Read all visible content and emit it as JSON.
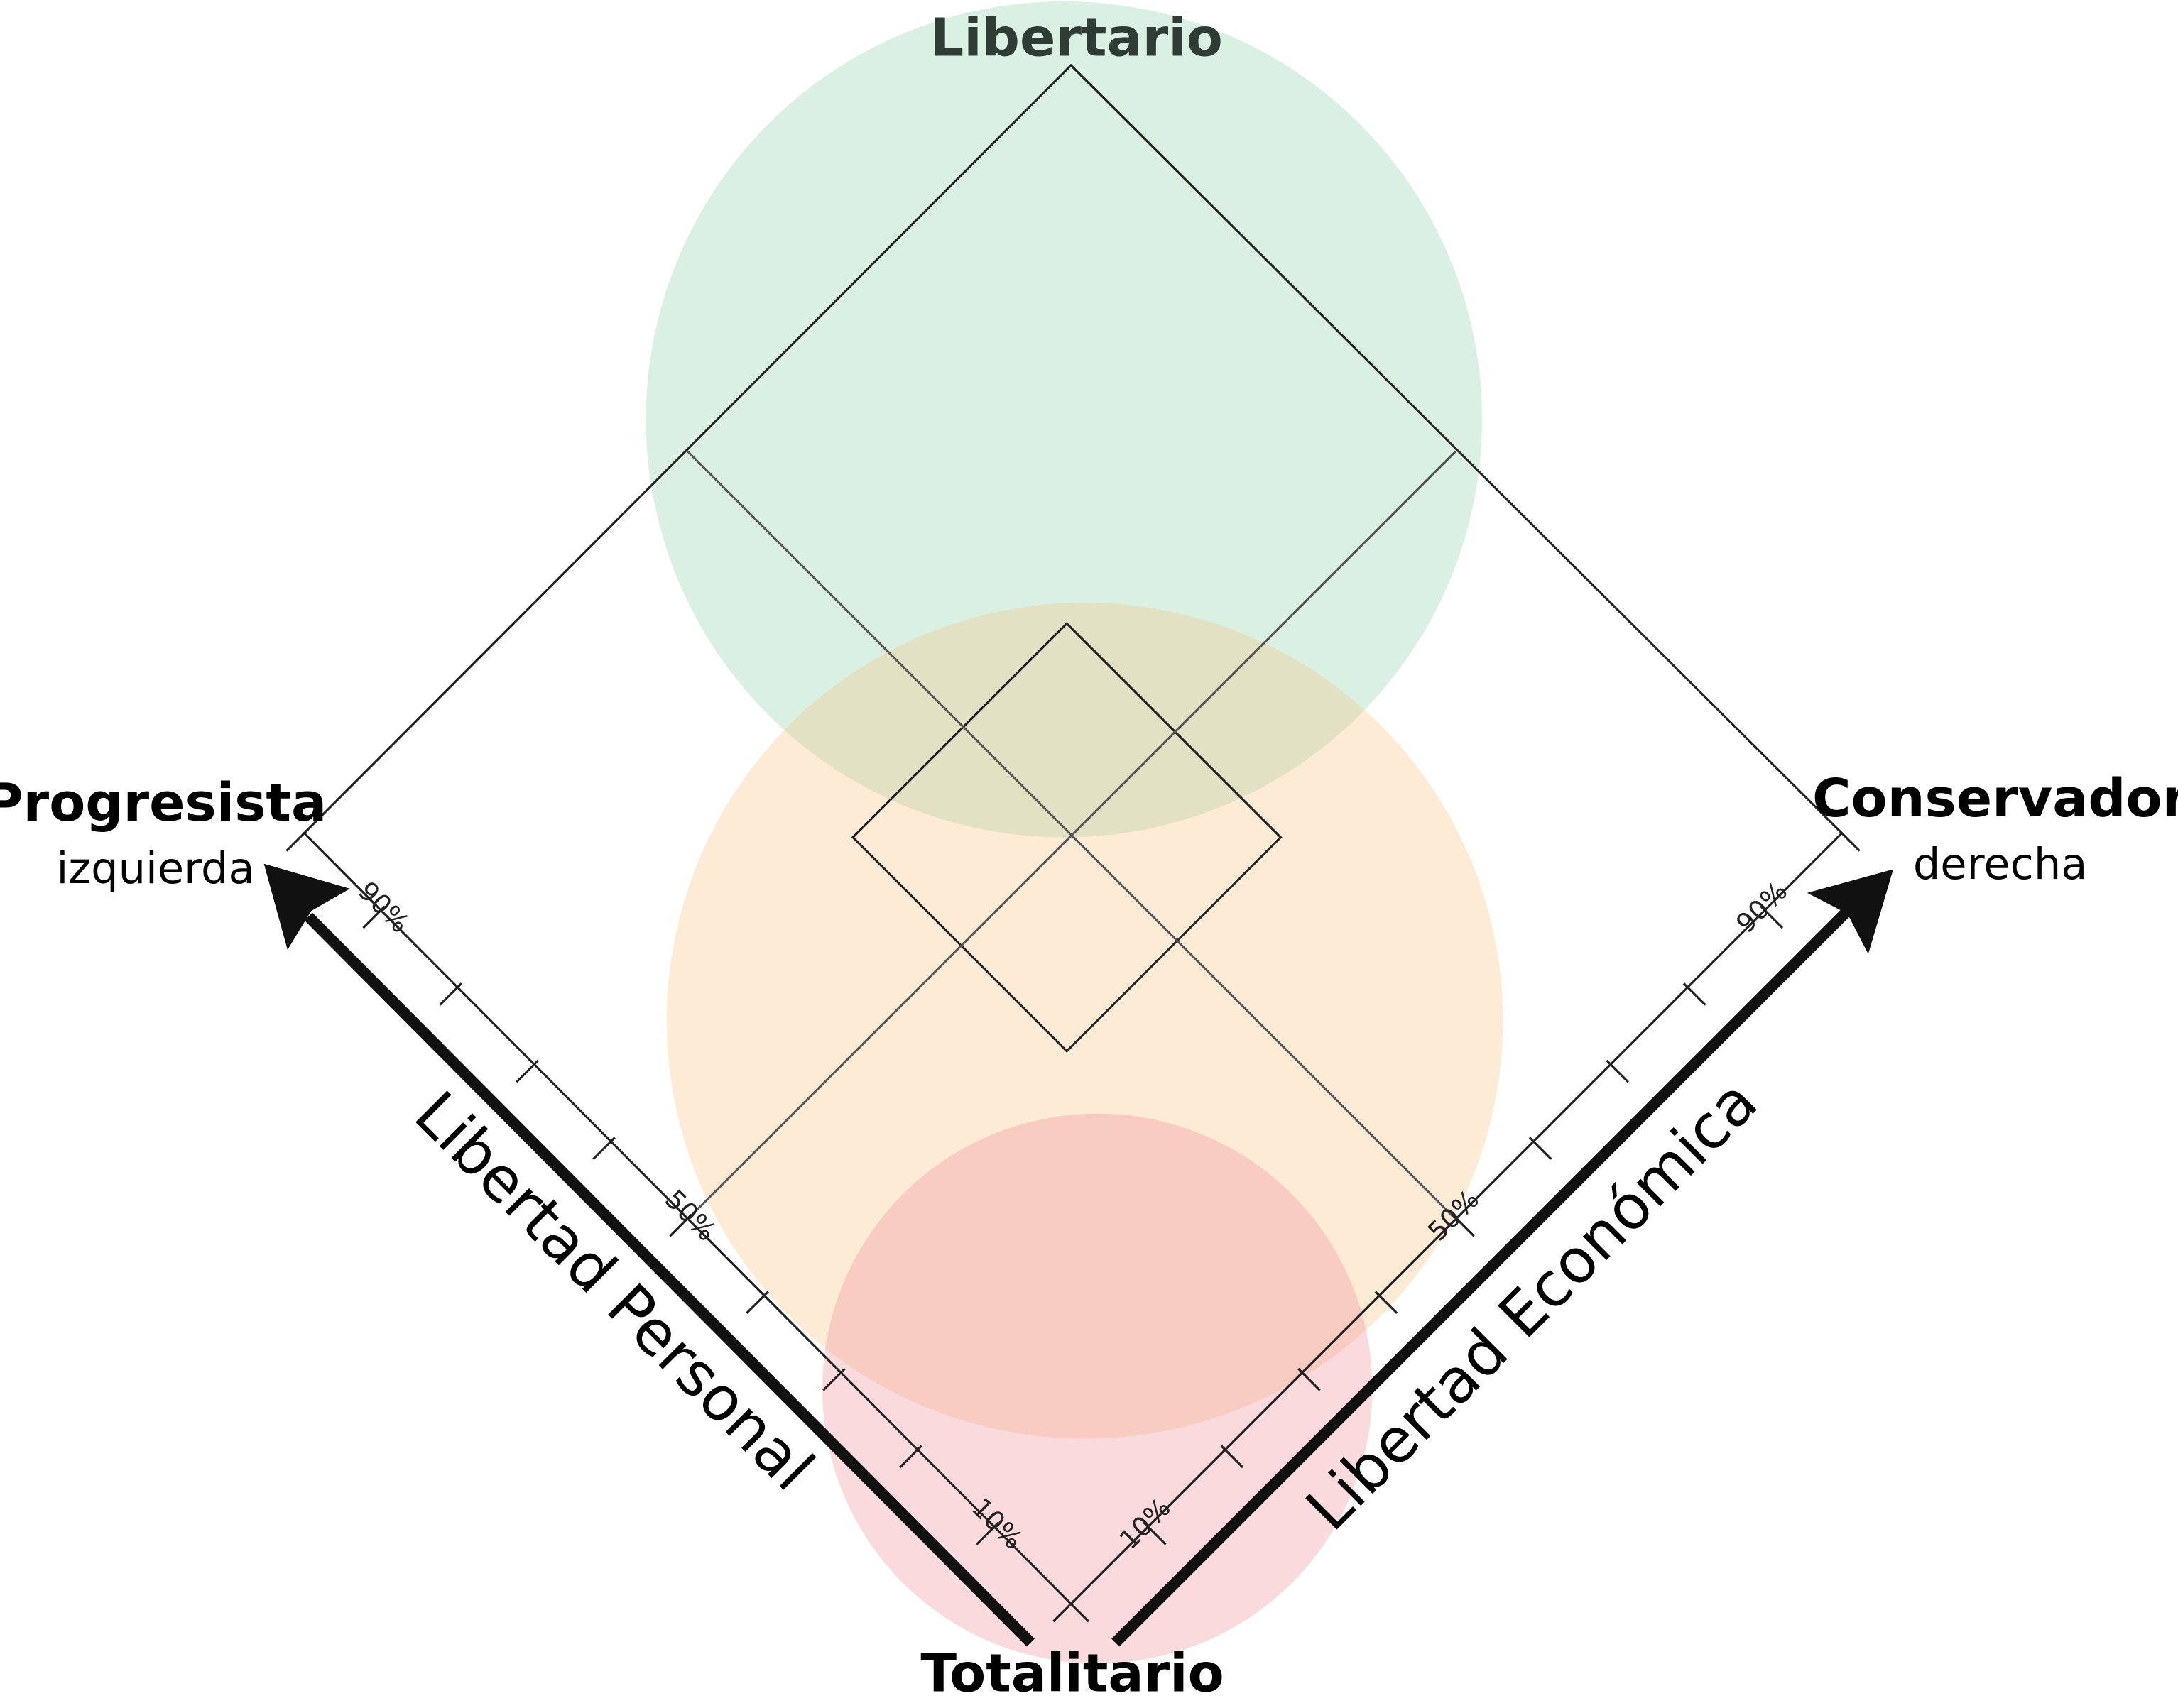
{
  "corners": {
    "top": "Libertario",
    "left": {
      "title": "Progresista",
      "subtitle": "izquierda"
    },
    "right": {
      "title": "Conservador",
      "subtitle": "derecha"
    },
    "bottom": "Totalitario"
  },
  "axes": {
    "personal": {
      "label": "Libertad Personal",
      "ticks": [
        "90%",
        "50%",
        "10%"
      ]
    },
    "economic": {
      "label": "Libertad Económica",
      "ticks": [
        "10%",
        "50%",
        "90%"
      ]
    }
  }
}
